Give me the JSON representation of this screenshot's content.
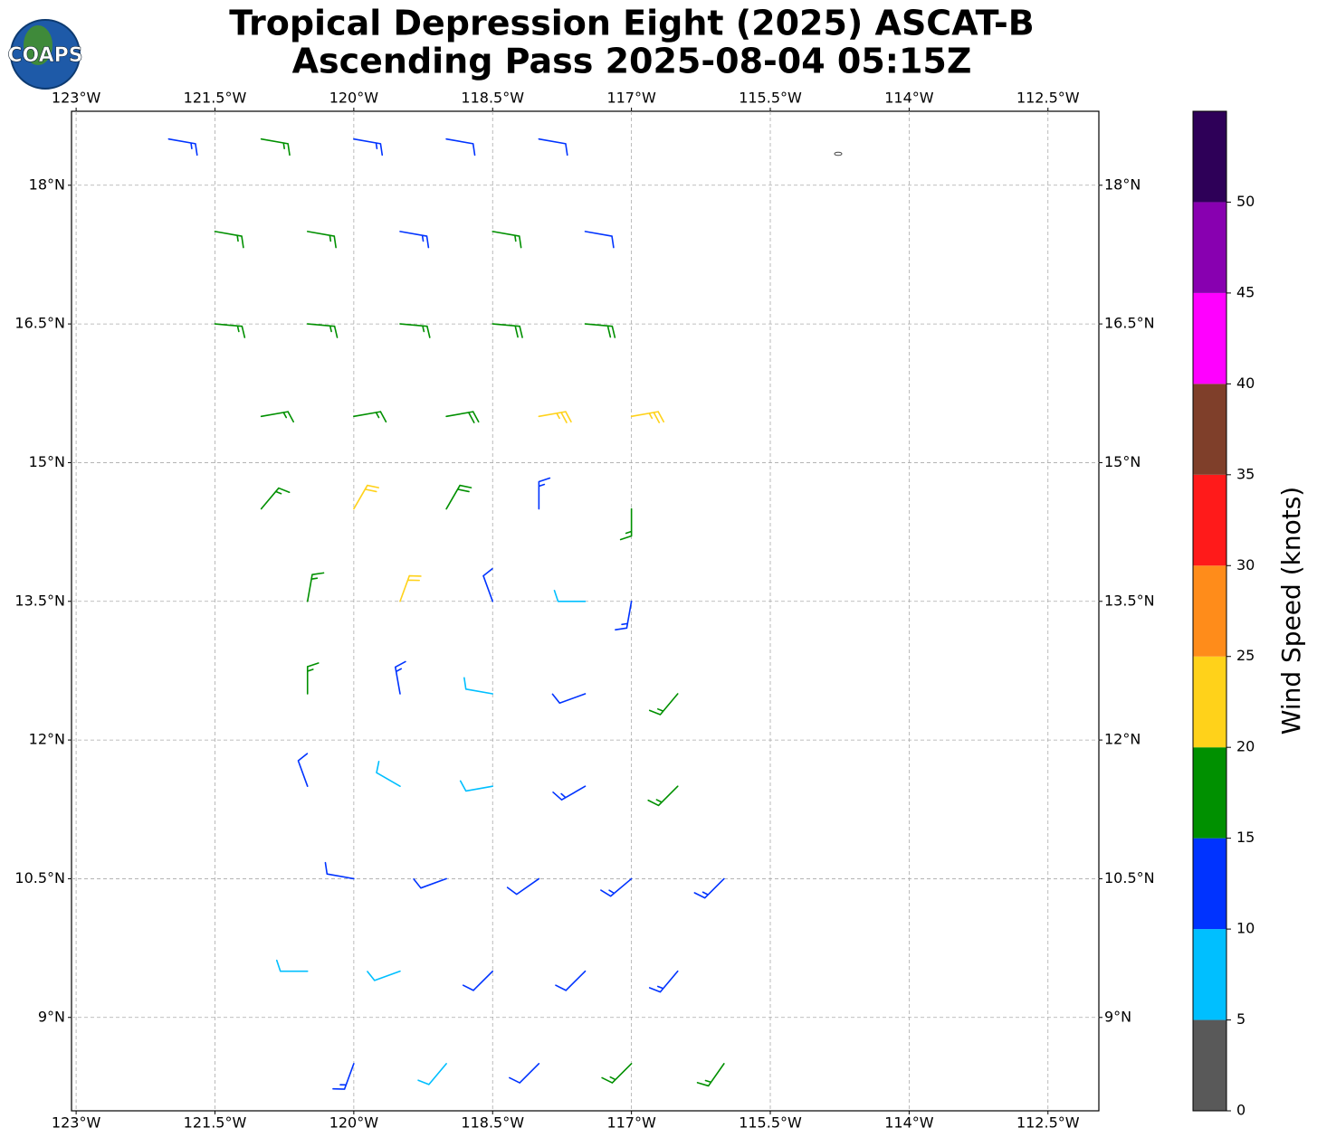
{
  "chart_data": {
    "type": "barbs",
    "title": "Tropical Depression Eight (2025) ASCAT-B",
    "subtitle": "Ascending Pass 2025-08-04 05:15Z",
    "logo": "COAPS",
    "xlim": [
      -123.05,
      -111.95
    ],
    "ylim": [
      7.99,
      18.8
    ],
    "xticks": [
      {
        "value": -123,
        "label": "123°W"
      },
      {
        "value": -121.5,
        "label": "121.5°W"
      },
      {
        "value": -120,
        "label": "120°W"
      },
      {
        "value": -118.5,
        "label": "118.5°W"
      },
      {
        "value": -117,
        "label": "117°W"
      },
      {
        "value": -115.5,
        "label": "115.5°W"
      },
      {
        "value": -114,
        "label": "114°W"
      },
      {
        "value": -112.5,
        "label": "112.5°W"
      }
    ],
    "yticks": [
      {
        "value": 9,
        "label": "9°N"
      },
      {
        "value": 10.5,
        "label": "10.5°N"
      },
      {
        "value": 12,
        "label": "12°N"
      },
      {
        "value": 13.5,
        "label": "13.5°N"
      },
      {
        "value": 15,
        "label": "15°N"
      },
      {
        "value": 16.5,
        "label": "16.5°N"
      },
      {
        "value": 18,
        "label": "18°N"
      }
    ],
    "grid": true,
    "barbs": {
      "lon": [
        -122,
        -121,
        -120,
        -119,
        -118,
        -121.5,
        -120.5,
        -119.5,
        -118.5,
        -117.5,
        -121.5,
        -120.5,
        -119.5,
        -118.5,
        -117.5,
        -121,
        -120,
        -119,
        -118,
        -117,
        -121,
        -120,
        -119,
        -118,
        -117,
        -120.5,
        -119.5,
        -118.5,
        -117.5,
        -117,
        -120.5,
        -119.5,
        -118.5,
        -117.5,
        -116.5,
        -120.5,
        -119.5,
        -118.5,
        -117.5,
        -116.5,
        -120,
        -119,
        -118,
        -117,
        -116,
        -120.5,
        -119.5,
        -118.5,
        -117.5,
        -116.5,
        -120,
        -119,
        -118,
        -117,
        -116
      ],
      "lat": [
        18.5,
        18.5,
        18.5,
        18.5,
        18.5,
        17.5,
        17.5,
        17.5,
        17.5,
        17.5,
        16.5,
        16.5,
        16.5,
        16.5,
        16.5,
        15.5,
        15.5,
        15.5,
        15.5,
        15.5,
        14.5,
        14.5,
        14.5,
        14.5,
        14.5,
        13.5,
        13.5,
        13.5,
        13.5,
        13.5,
        12.5,
        12.5,
        12.5,
        12.5,
        12.5,
        11.5,
        11.5,
        11.5,
        11.5,
        11.5,
        10.5,
        10.5,
        10.5,
        10.5,
        10.5,
        9.5,
        9.5,
        9.5,
        9.5,
        9.5,
        8.5,
        8.5,
        8.5,
        8.5,
        8.5
      ],
      "speed": [
        14,
        16,
        13,
        12,
        12,
        17,
        16,
        13,
        15,
        12,
        17,
        17,
        17,
        18,
        18,
        17,
        17,
        19,
        23,
        23,
        17,
        22,
        18,
        13,
        17,
        16,
        22,
        12,
        8,
        14,
        17,
        13,
        8,
        12,
        16,
        12,
        8,
        9,
        13,
        17,
        12,
        12,
        12,
        13,
        13,
        8,
        9,
        12,
        12,
        14,
        13,
        9,
        12,
        17,
        17
      ],
      "direction": [
        100,
        100,
        100,
        100,
        100,
        100,
        100,
        100,
        100,
        100,
        95,
        95,
        95,
        95,
        95,
        80,
        80,
        80,
        80,
        80,
        40,
        30,
        30,
        0,
        180,
        10,
        20,
        340,
        270,
        190,
        0,
        350,
        280,
        250,
        220,
        340,
        300,
        260,
        240,
        225,
        280,
        250,
        235,
        230,
        225,
        270,
        250,
        225,
        225,
        220,
        200,
        220,
        225,
        225,
        215
      ]
    },
    "colorbar": {
      "label": "Wind Speed (knots)",
      "bounds": [
        0,
        5,
        10,
        15,
        20,
        25,
        30,
        35,
        40,
        45,
        50,
        55
      ],
      "colors": [
        "#595959",
        "#00bfff",
        "#0033ff",
        "#009000",
        "#ffd21a",
        "#ff8c1a",
        "#ff1a1a",
        "#7f3f2a",
        "#ff00ff",
        "#8800b0",
        "#2e0058"
      ],
      "ticks": [
        0,
        5,
        10,
        15,
        20,
        25,
        30,
        35,
        40,
        45,
        50
      ]
    }
  }
}
